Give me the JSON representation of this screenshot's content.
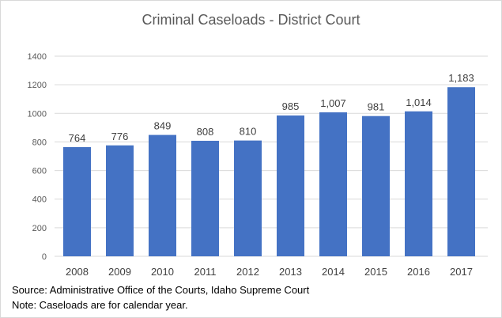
{
  "chart_data": {
    "type": "bar",
    "title": "Criminal Caseloads - District Court",
    "categories": [
      "2008",
      "2009",
      "2010",
      "2011",
      "2012",
      "2013",
      "2014",
      "2015",
      "2016",
      "2017"
    ],
    "values": [
      764,
      776,
      849,
      808,
      810,
      985,
      1007,
      981,
      1014,
      1183
    ],
    "data_labels": [
      "764",
      "776",
      "849",
      "808",
      "810",
      "985",
      "1,007",
      "981",
      "1,014",
      "1,183"
    ],
    "ylim": [
      0,
      1400
    ],
    "yticks": [
      0,
      200,
      400,
      600,
      800,
      1000,
      1200,
      1400
    ],
    "grid": true,
    "bar_color": "#4472c4",
    "xlabel": "",
    "ylabel": ""
  },
  "notes": {
    "source": "Source:  Administrative Office of the Courts, Idaho Supreme Court",
    "note": "Note:  Caseloads are for calendar year."
  }
}
